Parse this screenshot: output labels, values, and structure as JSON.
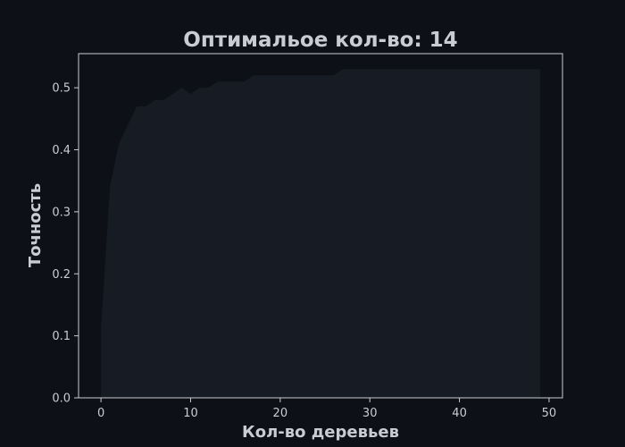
{
  "colors": {
    "page_background": "#0d1017",
    "plot_background": "#0d1017",
    "fill": "#171b23",
    "axis": "#c9ccd2",
    "text": "#c9ccd2"
  },
  "chart_data": {
    "type": "area",
    "title": "Оптимальое кол-во: 14",
    "xlabel": "Кол-во деревьев",
    "ylabel": "Точность",
    "xlim": [
      -2.5,
      51.5
    ],
    "ylim": [
      0,
      0.555
    ],
    "x_ticks": [
      0,
      10,
      20,
      30,
      40,
      50
    ],
    "x_tick_labels": [
      "0",
      "10",
      "20",
      "30",
      "40",
      "50"
    ],
    "y_ticks": [
      0.0,
      0.1,
      0.2,
      0.3,
      0.4,
      0.5
    ],
    "y_tick_labels": [
      "0.0",
      "0.1",
      "0.2",
      "0.3",
      "0.4",
      "0.5"
    ],
    "grid": false,
    "legend": false,
    "x": [
      0,
      1,
      2,
      3,
      4,
      5,
      6,
      7,
      8,
      9,
      10,
      11,
      12,
      13,
      14,
      15,
      16,
      17,
      18,
      19,
      20,
      21,
      22,
      23,
      24,
      25,
      26,
      27,
      28,
      29,
      30,
      31,
      32,
      33,
      34,
      35,
      36,
      37,
      38,
      39,
      40,
      41,
      42,
      43,
      44,
      45,
      46,
      47,
      48,
      49
    ],
    "y": [
      0.11,
      0.34,
      0.41,
      0.44,
      0.47,
      0.47,
      0.48,
      0.48,
      0.49,
      0.5,
      0.49,
      0.5,
      0.5,
      0.51,
      0.51,
      0.51,
      0.51,
      0.52,
      0.52,
      0.52,
      0.52,
      0.52,
      0.52,
      0.52,
      0.52,
      0.52,
      0.52,
      0.53,
      0.53,
      0.53,
      0.53,
      0.53,
      0.53,
      0.53,
      0.53,
      0.53,
      0.53,
      0.53,
      0.53,
      0.53,
      0.53,
      0.53,
      0.53,
      0.53,
      0.53,
      0.53,
      0.53,
      0.53,
      0.53,
      0.53
    ]
  }
}
